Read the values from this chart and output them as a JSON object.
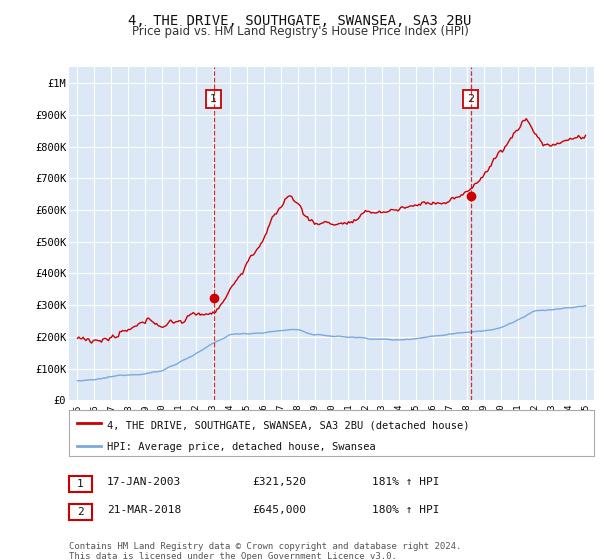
{
  "title": "4, THE DRIVE, SOUTHGATE, SWANSEA, SA3 2BU",
  "subtitle": "Price paid vs. HM Land Registry's House Price Index (HPI)",
  "title_fontsize": 10,
  "subtitle_fontsize": 8.5,
  "background_color": "#ffffff",
  "plot_bg_color": "#dce8f5",
  "grid_color": "#ffffff",
  "red_color": "#cc0000",
  "blue_color": "#7aaadd",
  "ylim": [
    0,
    1050000
  ],
  "yticks": [
    0,
    100000,
    200000,
    300000,
    400000,
    500000,
    600000,
    700000,
    800000,
    900000,
    1000000
  ],
  "ytick_labels": [
    "£0",
    "£100K",
    "£200K",
    "£300K",
    "£400K",
    "£500K",
    "£600K",
    "£700K",
    "£800K",
    "£900K",
    "£1M"
  ],
  "marker1_x": 2003.04,
  "marker1_y": 321520,
  "marker2_x": 2018.22,
  "marker2_y": 645000,
  "legend_red": "4, THE DRIVE, SOUTHGATE, SWANSEA, SA3 2BU (detached house)",
  "legend_blue": "HPI: Average price, detached house, Swansea",
  "table": [
    {
      "num": "1",
      "date": "17-JAN-2003",
      "price": "£321,520",
      "hpi": "181% ↑ HPI"
    },
    {
      "num": "2",
      "date": "21-MAR-2018",
      "price": "£645,000",
      "hpi": "180% ↑ HPI"
    }
  ],
  "footer": "Contains HM Land Registry data © Crown copyright and database right 2024.\nThis data is licensed under the Open Government Licence v3.0.",
  "xmin": 1994.5,
  "xmax": 2025.5
}
